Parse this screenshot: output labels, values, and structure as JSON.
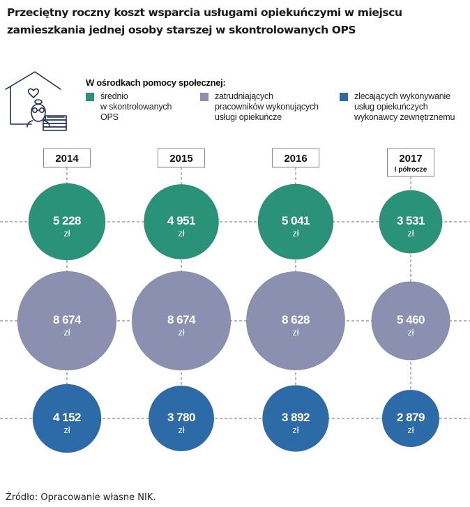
{
  "title": "Przeciętny roczny koszt wsparcia usługami opiekuńczymi w miejscu zamieszkania jednej osoby starszej w skontrolowanych OPS",
  "legend": {
    "heading": "W ośrodkach pomocy społecznej:",
    "items": [
      {
        "lines": [
          "średnio",
          "w skontrolowanych",
          "OPS"
        ],
        "color": "#2a9279"
      },
      {
        "lines": [
          "zatrudniających",
          "pracowników wykonujących",
          "usługi opiekuńcze"
        ],
        "color": "#8b8fb0"
      },
      {
        "lines": [
          "zlecających wykonywanie",
          "usług opiekuńczych",
          "wykonawcy zewnętrznemu"
        ],
        "color": "#2c6aa8"
      }
    ]
  },
  "icon": "house-elderly-person-money-icon",
  "source": "Źródło: Opracowanie własne NIK.",
  "chart_data": {
    "type": "bubble",
    "title": "Przeciętny roczny koszt wsparcia usługami opiekuńczymi w miejscu zamieszkania jednej osoby starszej w skontrolowanych OPS",
    "categories": [
      {
        "label": "2014",
        "sublabel": ""
      },
      {
        "label": "2015",
        "sublabel": ""
      },
      {
        "label": "2016",
        "sublabel": ""
      },
      {
        "label": "2017",
        "sublabel": "I półrocze"
      }
    ],
    "unit": "zł",
    "series": [
      {
        "name": "średnio w skontrolowanych OPS",
        "color": "#2a9279",
        "values": [
          5228,
          4951,
          5041,
          3531
        ],
        "labels": [
          "5 228",
          "4 951",
          "5 041",
          "3 531"
        ]
      },
      {
        "name": "zatrudniających pracowników wykonujących usługi opiekuńcze",
        "color": "#8b8fb0",
        "values": [
          8674,
          8674,
          8628,
          5460
        ],
        "labels": [
          "8 674",
          "8 674",
          "8 628",
          "5 460"
        ]
      },
      {
        "name": "zlecających wykonywanie usług opiekuńczych wykonawcy zewnętrznemu",
        "color": "#2c6aa8",
        "values": [
          4152,
          3780,
          3892,
          2879
        ],
        "labels": [
          "4 152",
          "3 780",
          "3 892",
          "2 879"
        ]
      }
    ],
    "size_encoding": "circle area proportional to value",
    "grid": "dashed connector lines"
  }
}
